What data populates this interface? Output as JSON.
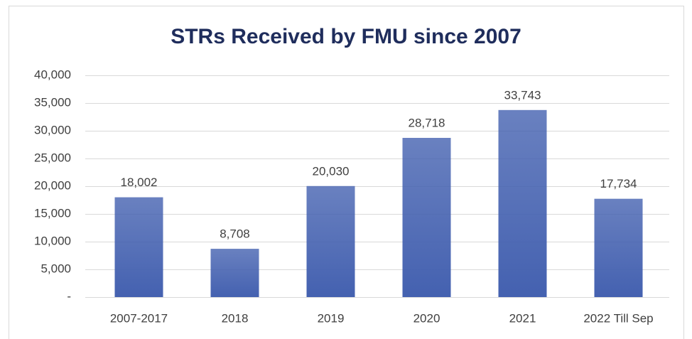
{
  "chart_data": {
    "type": "bar",
    "title": "STRs Received by FMU since 2007",
    "categories": [
      "2007-2017",
      "2018",
      "2019",
      "2020",
      "2021",
      "2022 Till Sep"
    ],
    "values": [
      18002,
      8708,
      20030,
      28718,
      33743,
      17734
    ],
    "value_labels": [
      "18,002",
      "8,708",
      "20,030",
      "28,718",
      "33,743",
      "17,734"
    ],
    "color": "#4461b0",
    "ylim": [
      0,
      40000
    ],
    "yticks": [
      {
        "value": 0,
        "label": "-"
      },
      {
        "value": 5000,
        "label": "5,000"
      },
      {
        "value": 10000,
        "label": "10,000"
      },
      {
        "value": 15000,
        "label": "15,000"
      },
      {
        "value": 20000,
        "label": "20,000"
      },
      {
        "value": 25000,
        "label": "25,000"
      },
      {
        "value": 30000,
        "label": "30,000"
      },
      {
        "value": 35000,
        "label": "35,000"
      },
      {
        "value": 40000,
        "label": "40,000"
      }
    ],
    "grid": true
  }
}
